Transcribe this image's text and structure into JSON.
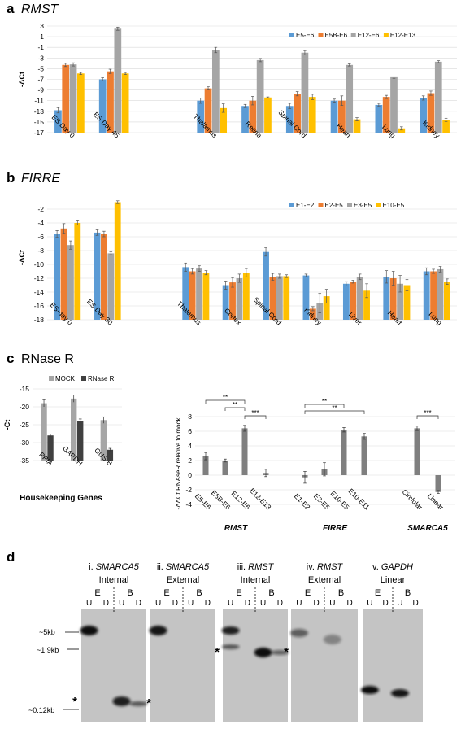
{
  "panels": {
    "a": {
      "letter": "a",
      "title": "RMST"
    },
    "b": {
      "letter": "b",
      "title": "FIRRE"
    },
    "c": {
      "letter": "c",
      "title": "RNase R"
    },
    "d": {
      "letter": "d"
    }
  },
  "colors": {
    "blue": "#5b9bd5",
    "orange": "#ed7d31",
    "gray": "#a5a5a5",
    "yellow": "#ffc000",
    "mock": "#a6a6a6",
    "rnaser": "#404040",
    "bar_c2": "#7f7f7f"
  },
  "chart_data": [
    {
      "id": "a",
      "type": "bar",
      "ylabel": "-ΔCt",
      "ylim": [
        -17,
        3
      ],
      "yticks": [
        3,
        1,
        -1,
        -3,
        -5,
        -7,
        -9,
        -11,
        -13,
        -15,
        -17
      ],
      "grid": true,
      "legend": "top-right",
      "categories": [
        "ES Day 0",
        "ES Day 45",
        "Thalamus",
        "Retina",
        "Spinal Cord",
        "Heart",
        "Lung",
        "Kidney"
      ],
      "gap_after_index": 1,
      "series": [
        {
          "name": "E5-E6",
          "color": "#5b9bd5",
          "values": [
            -12.8,
            -7.0,
            -11.0,
            -12.0,
            -12.0,
            -11.0,
            -11.8,
            -10.5
          ],
          "errors": [
            0.5,
            0.3,
            0.5,
            0.3,
            0.5,
            0.3,
            0.3,
            0.4
          ]
        },
        {
          "name": "E5B-E6",
          "color": "#ed7d31",
          "values": [
            -4.3,
            -5.5,
            -8.7,
            -11.0,
            -9.7,
            -11.0,
            -10.3,
            -9.6
          ],
          "errors": [
            0.3,
            0.4,
            0.3,
            0.8,
            0.4,
            0.9,
            0.3,
            0.4
          ]
        },
        {
          "name": "E12-E6",
          "color": "#a5a5a5",
          "values": [
            -4.2,
            2.5,
            -1.5,
            -3.4,
            -2.0,
            -4.3,
            -6.6,
            -3.7
          ],
          "errors": [
            0.3,
            0.3,
            0.5,
            0.3,
            0.4,
            0.2,
            0.2,
            0.2
          ]
        },
        {
          "name": "E12-E13",
          "color": "#ffc000",
          "values": [
            -5.9,
            -5.9,
            -12.4,
            -10.4,
            -10.3,
            -14.5,
            -16.2,
            -14.6
          ],
          "errors": [
            0.2,
            0.2,
            0.8,
            0.1,
            0.5,
            0.3,
            0.3,
            0.3
          ]
        }
      ]
    },
    {
      "id": "b",
      "type": "bar",
      "ylabel": "-ΔCt",
      "ylim": [
        -18,
        0
      ],
      "yticks": [
        -2,
        -4,
        -6,
        -8,
        -10,
        -12,
        -14,
        -16,
        -18
      ],
      "grid": true,
      "legend": "top-right",
      "categories": [
        "ES-day 0",
        "ES Day 30",
        "Thalamus",
        "Cortex",
        "Spinal Cord",
        "Kidney",
        "Liver",
        "Heart",
        "Lung"
      ],
      "gap_after_index": 1,
      "series": [
        {
          "name": "E1-E2",
          "color": "#5b9bd5",
          "values": [
            -5.6,
            -5.4,
            -10.4,
            -13.0,
            -8.2,
            -11.6,
            -12.8,
            -11.8,
            -11.0
          ],
          "errors": [
            0.5,
            0.4,
            0.6,
            0.6,
            0.6,
            0.2,
            0.3,
            0.9,
            0.5
          ]
        },
        {
          "name": "E2-E5",
          "color": "#ed7d31",
          "values": [
            -4.8,
            -5.6,
            -11.0,
            -12.6,
            -11.8,
            -16.4,
            -12.5,
            -12.0,
            -11.0
          ],
          "errors": [
            0.7,
            0.4,
            0.4,
            0.7,
            0.5,
            0.3,
            0.2,
            1.0,
            0.3
          ]
        },
        {
          "name": "E3-E5",
          "color": "#a5a5a5",
          "values": [
            -7.2,
            -8.4,
            -10.6,
            -12.0,
            -11.7,
            -15.6,
            -11.8,
            -12.8,
            -10.7
          ],
          "errors": [
            0.6,
            0.2,
            0.4,
            0.6,
            0.3,
            1.4,
            0.4,
            1.2,
            0.4
          ]
        },
        {
          "name": "E10-E5",
          "color": "#ffc000",
          "values": [
            -4.0,
            -1.0,
            -11.2,
            -11.2,
            -11.7,
            -14.6,
            -13.8,
            -13.0,
            -12.5
          ],
          "errors": [
            0.3,
            0.2,
            0.3,
            0.6,
            0.2,
            1.0,
            1.0,
            0.8,
            0.4
          ]
        }
      ]
    },
    {
      "id": "c1",
      "type": "bar",
      "ylabel": "-Ct",
      "xlabel": "Housekeeping Genes",
      "ylim": [
        -35,
        -15
      ],
      "yticks": [
        -15,
        -20,
        -25,
        -30,
        -35
      ],
      "grid": true,
      "legend": "top",
      "categories": [
        "PPIA",
        "GAPDH",
        "GUS-B"
      ],
      "series": [
        {
          "name": "MOCK",
          "color": "#a6a6a6",
          "values": [
            -19.0,
            -17.7,
            -23.7
          ],
          "errors": [
            1.0,
            1.0,
            0.9
          ]
        },
        {
          "name": "RNase R",
          "color": "#404040",
          "values": [
            -28.0,
            -24.0,
            -32.0
          ],
          "errors": [
            0.4,
            0.6,
            0.4
          ]
        }
      ]
    },
    {
      "id": "c2",
      "type": "bar",
      "ylabel": "-ΔΔCt RNAseR relative to mock",
      "ylim": [
        -4,
        8
      ],
      "yticks": [
        8,
        6,
        4,
        2,
        0,
        -2,
        -4
      ],
      "grid": true,
      "categories": [
        "E5-E6",
        "E5B-E6",
        "E12-E6",
        "E12-E13",
        "E1-E2",
        "E2-E5",
        "E10-E5",
        "E10-E11",
        "Circlular",
        "Linear"
      ],
      "values": [
        2.6,
        2.0,
        6.4,
        0.3,
        -0.3,
        0.8,
        6.2,
        5.3,
        6.4,
        -2.3
      ],
      "errors": [
        0.5,
        0.2,
        0.4,
        0.5,
        0.8,
        0.9,
        0.3,
        0.4,
        0.3,
        0.2
      ],
      "groups": [
        {
          "label": "RMST",
          "from": 0,
          "to": 3
        },
        {
          "label": "FIRRE",
          "from": 4,
          "to": 7
        },
        {
          "label": "SMARCA5",
          "from": 8,
          "to": 9
        }
      ],
      "significance": [
        {
          "from": 0,
          "to": 2,
          "label": "**"
        },
        {
          "from": 1,
          "to": 2,
          "label": "**"
        },
        {
          "from": 2,
          "to": 3,
          "label": "***"
        },
        {
          "from": 4,
          "to": 6,
          "label": "**"
        },
        {
          "from": 4,
          "to": 7,
          "label": "**"
        },
        {
          "from": 8,
          "to": 9,
          "label": "***"
        }
      ]
    }
  ],
  "blots": {
    "size_markers": [
      "~5kb",
      "~1.9kb",
      "~0.12kb"
    ],
    "lane_labels": [
      "U",
      "D",
      "U",
      "D"
    ],
    "group_labels": [
      "E",
      "B"
    ],
    "asterisk": "*",
    "items": [
      {
        "title_roman": "i.",
        "title_gene": "SMARCA5",
        "subtitle": "Internal"
      },
      {
        "title_roman": "ii.",
        "title_gene": "SMARCA5",
        "subtitle": "External"
      },
      {
        "title_roman": "iii.",
        "title_gene": "RMST",
        "subtitle": "Internal"
      },
      {
        "title_roman": "iv.",
        "title_gene": "RMST",
        "subtitle": "External"
      },
      {
        "title_roman": "v.",
        "title_gene": "GAPDH",
        "subtitle": "Linear"
      }
    ]
  }
}
